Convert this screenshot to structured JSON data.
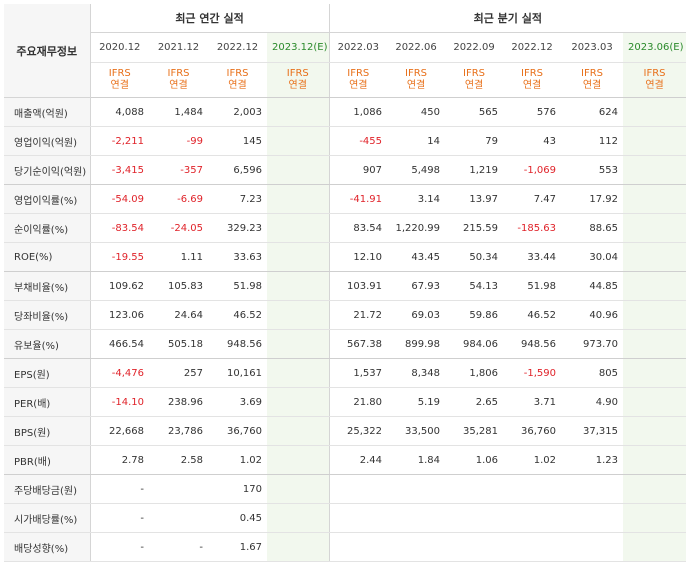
{
  "header": {
    "label_col": "주요재무정보",
    "group_annual": "최근 연간 실적",
    "group_quarter": "최근 분기 실적",
    "periods": [
      "2020.12",
      "2021.12",
      "2022.12",
      "2023.12(E)",
      "2022.03",
      "2022.06",
      "2022.09",
      "2022.12",
      "2023.03",
      "2023.06(E)"
    ],
    "ifrs_line1": "IFRS",
    "ifrs_line2": "연결"
  },
  "colors": {
    "negative": "#e0232a",
    "ifrs": "#e8701a",
    "estimate_bg": "#f2f8ee",
    "estimate_text": "#2a8a2a"
  },
  "rows": [
    {
      "label": "매출액(억원)",
      "values": [
        "4,088",
        "1,484",
        "2,003",
        "",
        "1,086",
        "450",
        "565",
        "576",
        "624",
        ""
      ]
    },
    {
      "label": "영업이익(억원)",
      "values": [
        "-2,211",
        "-99",
        "145",
        "",
        "-455",
        "14",
        "79",
        "43",
        "112",
        ""
      ]
    },
    {
      "label": "당기순이익(억원)",
      "values": [
        "-3,415",
        "-357",
        "6,596",
        "",
        "907",
        "5,498",
        "1,219",
        "-1,069",
        "553",
        ""
      ]
    },
    {
      "label": "영업이익률(%)",
      "values": [
        "-54.09",
        "-6.69",
        "7.23",
        "",
        "-41.91",
        "3.14",
        "13.97",
        "7.47",
        "17.92",
        ""
      ]
    },
    {
      "label": "순이익률(%)",
      "values": [
        "-83.54",
        "-24.05",
        "329.23",
        "",
        "83.54",
        "1,220.99",
        "215.59",
        "-185.63",
        "88.65",
        ""
      ]
    },
    {
      "label": "ROE(%)",
      "values": [
        "-19.55",
        "1.11",
        "33.63",
        "",
        "12.10",
        "43.45",
        "50.34",
        "33.44",
        "30.04",
        ""
      ]
    },
    {
      "label": "부채비율(%)",
      "values": [
        "109.62",
        "105.83",
        "51.98",
        "",
        "103.91",
        "67.93",
        "54.13",
        "51.98",
        "44.85",
        ""
      ]
    },
    {
      "label": "당좌비율(%)",
      "values": [
        "123.06",
        "24.64",
        "46.52",
        "",
        "21.72",
        "69.03",
        "59.86",
        "46.52",
        "40.96",
        ""
      ]
    },
    {
      "label": "유보율(%)",
      "values": [
        "466.54",
        "505.18",
        "948.56",
        "",
        "567.38",
        "899.98",
        "984.06",
        "948.56",
        "973.70",
        ""
      ]
    },
    {
      "label": "EPS(원)",
      "values": [
        "-4,476",
        "257",
        "10,161",
        "",
        "1,537",
        "8,348",
        "1,806",
        "-1,590",
        "805",
        ""
      ]
    },
    {
      "label": "PER(배)",
      "values": [
        "-14.10",
        "238.96",
        "3.69",
        "",
        "21.80",
        "5.19",
        "2.65",
        "3.71",
        "4.90",
        ""
      ]
    },
    {
      "label": "BPS(원)",
      "values": [
        "22,668",
        "23,786",
        "36,760",
        "",
        "25,322",
        "33,500",
        "35,281",
        "36,760",
        "37,315",
        ""
      ]
    },
    {
      "label": "PBR(배)",
      "values": [
        "2.78",
        "2.58",
        "1.02",
        "",
        "2.44",
        "1.84",
        "1.06",
        "1.02",
        "1.23",
        ""
      ]
    },
    {
      "label": "주당배당금(원)",
      "values": [
        "-",
        "",
        "170",
        "",
        "",
        "",
        "",
        "",
        "",
        ""
      ]
    },
    {
      "label": "시가배당률(%)",
      "values": [
        "-",
        "",
        "0.45",
        "",
        "",
        "",
        "",
        "",
        "",
        ""
      ]
    },
    {
      "label": "배당성향(%)",
      "values": [
        "-",
        "-",
        "1.67",
        "",
        "",
        "",
        "",
        "",
        "",
        ""
      ]
    }
  ]
}
